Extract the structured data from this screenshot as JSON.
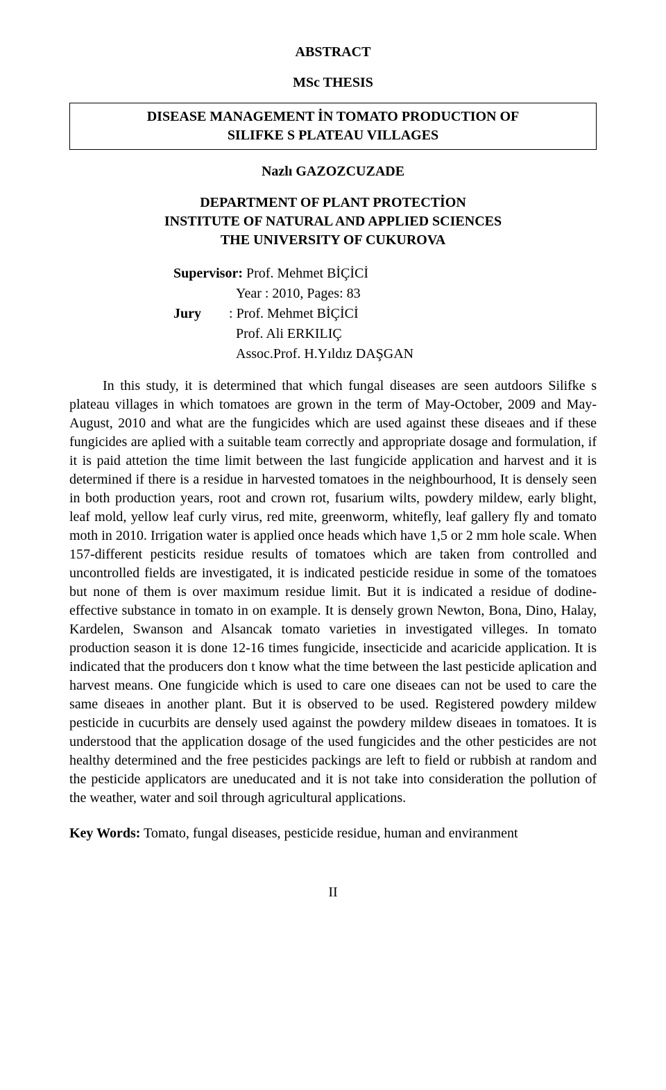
{
  "headings": {
    "abstract": "ABSTRACT",
    "thesis": "MSc THESIS"
  },
  "title_box": {
    "line1": "DISEASE MANAGEMENT  İN TOMATO PRODUCTION OF",
    "line2": "SILIFKE S PLATEAU VILLAGES"
  },
  "author": "Nazlı GAZOZCUZADE",
  "department": {
    "line1": "DEPARTMENT OF PLANT PROTECTİON",
    "line2": "INSTITUTE OF NATURAL AND APPLIED SCIENCES",
    "line3": "THE UNIVERSITY OF CUKUROVA"
  },
  "meta": {
    "supervisor_label": "Supervisor: ",
    "supervisor": "Prof. Mehmet BİÇİCİ",
    "year_pages": "Year : 2010, Pages: 83",
    "jury_label": "Jury",
    "jury_sep": "        : ",
    "jury1": "Prof. Mehmet BİÇİCİ",
    "jury2": "Prof. Ali ERKILIÇ",
    "jury3": "Assoc.Prof. H.Yıldız DAŞGAN"
  },
  "body": "In this study, it is determined that which fungal diseases are seen autdoors Silifke s plateau villages  in which tomatoes are grown in the term of May-October, 2009 and May-August, 2010 and what are the fungicides which are used against these diseaes and if these fungicides are aplied with a suitable team correctly and appropriate dosage and formulation, if it is paid attetion the time limit between the last fungicide application and harvest and it is determined if there is a residue in harvested  tomatoes in the neighbourhood, It is densely seen in both production years, root and crown rot, fusarium wilts, powdery mildew, early blight, leaf mold, yellow leaf curly virus, red mite, greenworm,  whitefly, leaf gallery fly  and tomato moth in 2010. Irrigation water is applied once heads which have 1,5 or 2 mm hole scale. When 157-different pesticits residue results of tomatoes which are taken from controlled and uncontrolled  fields are investigated, it is indicated pesticide residue in some of the tomatoes but none of them is over maximum residue limit. But it is indicated a residue of dodine-effective substance in tomato in on example. It is densely grown Newton, Bona, Dino,  Halay, Kardelen, Swanson and Alsancak tomato varieties in investigated villeges. In tomato production season it is done 12-16 times fungicide, insecticide and   acaricide application. It is indicated that the producers don t know what the time between  the last pesticide aplication and harvest means. One fungicide which is used to care one diseaes can not be used to care the same diseaes in another plant. But it is observed to be used. Registered powdery mildew pesticide in cucurbits are densely  used against the  powdery mildew  diseaes in tomatoes. It is understood that the application dosage of the used fungicides and the other pesticides are not healthy determined and the free pesticides packings are left to field or rubbish at random and the pesticide applicators are uneducated and it is not take into consideration the pollution of the weather, water and soil through agricultural applications.",
  "keywords": {
    "label": "Key Words:",
    "text": " Tomato, fungal diseases, pesticide residue, human and enviranment"
  },
  "page_number": "II",
  "colors": {
    "bg": "#ffffff",
    "text": "#000000",
    "border": "#000000"
  },
  "typography": {
    "font_family": "Times New Roman",
    "base_font_size_pt": 15,
    "line_height": 1.35
  }
}
